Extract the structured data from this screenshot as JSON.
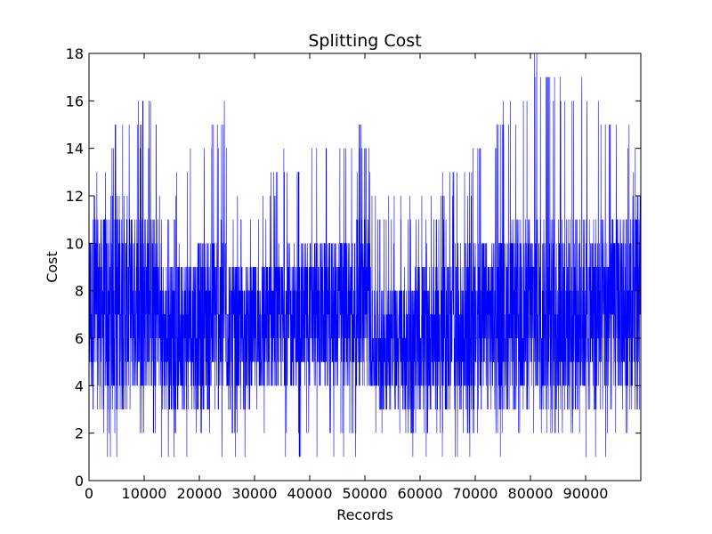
{
  "chart_data": {
    "type": "line",
    "title": "Splitting Cost",
    "xlabel": "Records",
    "ylabel": "Cost",
    "xlim": [
      0,
      100000
    ],
    "ylim": [
      0,
      18
    ],
    "x_ticks": [
      0,
      10000,
      20000,
      30000,
      40000,
      50000,
      60000,
      70000,
      80000,
      90000
    ],
    "x_tick_labels": [
      "0",
      "10000",
      "20000",
      "30000",
      "40000",
      "50000",
      "60000",
      "70000",
      "80000",
      "90000"
    ],
    "y_ticks": [
      0,
      2,
      4,
      6,
      8,
      10,
      12,
      14,
      16,
      18
    ],
    "y_tick_labels": [
      "0",
      "2",
      "4",
      "6",
      "8",
      "10",
      "12",
      "14",
      "16",
      "18"
    ],
    "grid": false,
    "legend": "none",
    "series_color": "#0000ff",
    "series": [
      {
        "envelope_description_points": [
          {
            "x": 0,
            "low": 1,
            "typical_low": 3,
            "typical_high": 11,
            "high": 13
          },
          {
            "x": 5500,
            "low": 1,
            "typical_low": 3,
            "typical_high": 12,
            "high": 16
          },
          {
            "x": 12500,
            "low": 1,
            "typical_low": 4,
            "typical_high": 11,
            "high": 16
          },
          {
            "x": 13000,
            "low": 1,
            "typical_low": 3,
            "typical_high": 9,
            "high": 12
          },
          {
            "x": 24500,
            "low": 1,
            "typical_low": 3,
            "typical_high": 11,
            "high": 16
          },
          {
            "x": 26000,
            "low": 1,
            "typical_low": 3,
            "typical_high": 9,
            "high": 12
          },
          {
            "x": 40000,
            "low": 1,
            "typical_low": 4,
            "typical_high": 10,
            "high": 15
          },
          {
            "x": 50500,
            "low": 1,
            "typical_low": 4,
            "typical_high": 11,
            "high": 15
          },
          {
            "x": 51500,
            "low": 1,
            "typical_low": 3,
            "typical_high": 8,
            "high": 12
          },
          {
            "x": 60000,
            "low": 1,
            "typical_low": 3,
            "typical_high": 9,
            "high": 12
          },
          {
            "x": 70000,
            "low": 1,
            "typical_low": 3,
            "typical_high": 10,
            "high": 14
          },
          {
            "x": 80000,
            "low": 1,
            "typical_low": 3,
            "typical_high": 11,
            "high": 18
          },
          {
            "x": 92500,
            "low": 1,
            "typical_low": 3,
            "typical_high": 11,
            "high": 17
          },
          {
            "x": 100000,
            "low": 2,
            "typical_low": 4,
            "typical_high": 12,
            "high": 14
          }
        ],
        "note": "noisy integer-valued series, one value per record"
      }
    ]
  }
}
